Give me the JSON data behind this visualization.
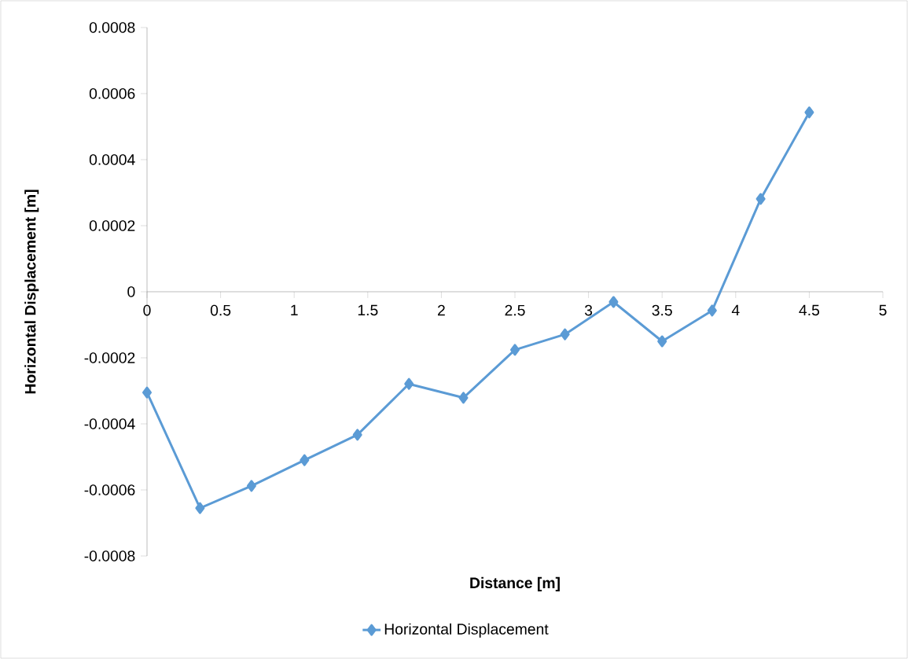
{
  "chart_data": {
    "type": "line",
    "xlabel": "Distance [m]",
    "ylabel": "Horizontal Displacement [m]",
    "x": [
      0,
      0.36,
      0.71,
      1.07,
      1.43,
      1.78,
      2.15,
      2.5,
      2.84,
      3.17,
      3.5,
      3.84,
      4.17,
      4.5
    ],
    "series": [
      {
        "name": "Horizontal Displacement",
        "color": "#5b9bd5",
        "values": [
          -0.000305,
          -0.000655,
          -0.000588,
          -0.00051,
          -0.000433,
          -0.000279,
          -0.000321,
          -0.000176,
          -0.000129,
          -3.1e-05,
          -0.00015,
          -5.7e-05,
          0.000281,
          0.000543
        ]
      }
    ],
    "xlim": [
      0,
      5
    ],
    "xticks": [
      0,
      0.5,
      1,
      1.5,
      2,
      2.5,
      3,
      3.5,
      4,
      4.5,
      5
    ],
    "ylim": [
      -0.0008,
      0.0008
    ],
    "yticks": [
      -0.0008,
      -0.0006,
      -0.0004,
      -0.0002,
      0,
      0.0002,
      0.0004,
      0.0006,
      0.0008
    ],
    "marker": "diamond",
    "line_style": "solid",
    "grid": false,
    "legend": "bottom"
  }
}
